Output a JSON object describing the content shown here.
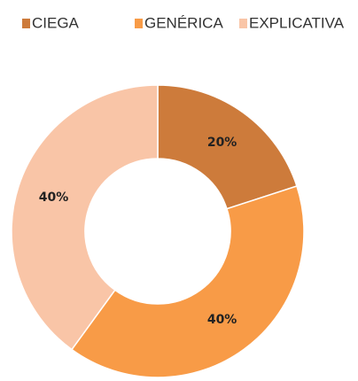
{
  "chart_data": {
    "type": "pie",
    "categories": [
      "CIEGA",
      "GENÉRICA",
      "EXPLICATIVA"
    ],
    "values": [
      20,
      40,
      40
    ],
    "value_labels": [
      "20%",
      "40%",
      "40%"
    ],
    "colors": [
      "#cd7b3b",
      "#f89b47",
      "#f9c5a7"
    ],
    "donut": true,
    "legend": "top"
  }
}
